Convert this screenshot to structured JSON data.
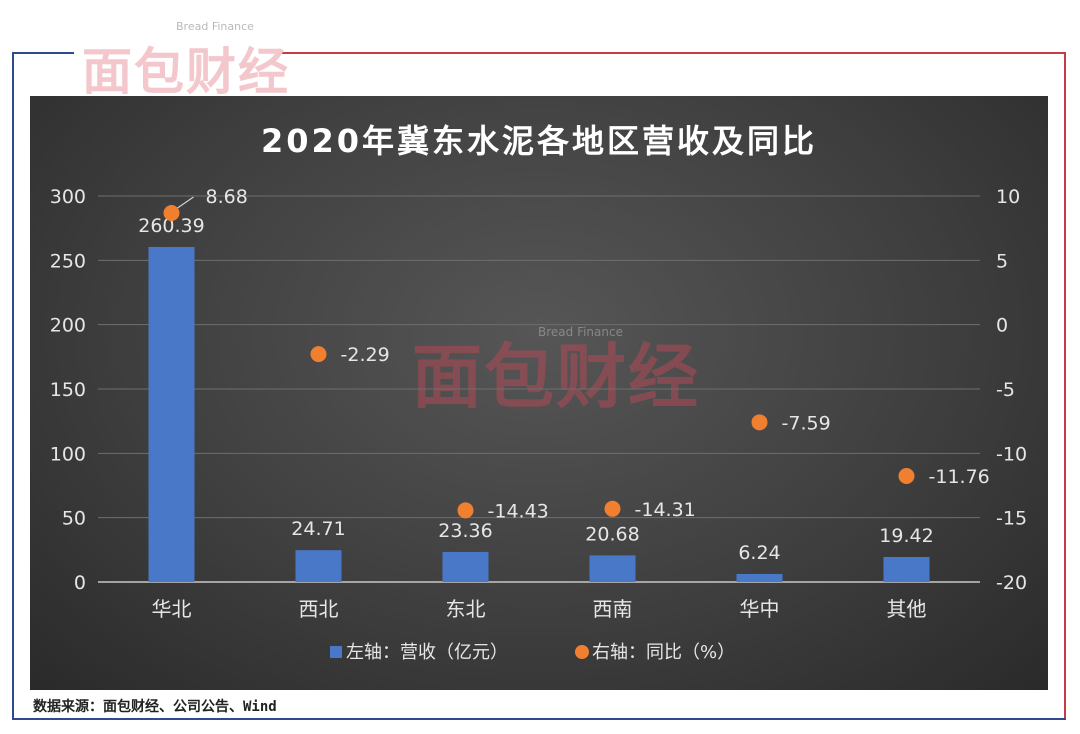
{
  "logo": {
    "cn": "面包财经",
    "en": "Bread Finance"
  },
  "source_note": "数据来源：面包财经、公司公告、Wind",
  "colors": {
    "bar": "#4472c4",
    "dot": "#ed7d31",
    "panel": "#404040",
    "frame_blue": "#2e4b8f",
    "frame_red": "#c63c46"
  },
  "chart_data": {
    "type": "bar",
    "title": "2020年冀东水泥各地区营收及同比",
    "categories": [
      "华北",
      "西北",
      "东北",
      "西南",
      "华中",
      "其他"
    ],
    "series": [
      {
        "name": "左轴：营收（亿元）",
        "type": "bar",
        "axis": "left",
        "values": [
          260.39,
          24.71,
          23.36,
          20.68,
          6.24,
          19.42
        ]
      },
      {
        "name": "右轴：同比（%）",
        "type": "scatter",
        "axis": "right",
        "values": [
          8.68,
          -2.29,
          -14.43,
          -14.31,
          -7.59,
          -11.76
        ]
      }
    ],
    "left_axis": {
      "ylim": [
        0,
        300
      ],
      "ticks": [
        0,
        50,
        100,
        150,
        200,
        250,
        300
      ]
    },
    "right_axis": {
      "ylim": [
        -20,
        10
      ],
      "ticks": [
        -20,
        -15,
        -10,
        -5,
        0,
        5,
        10
      ]
    },
    "legend_placement": "bottom",
    "grid": true
  }
}
